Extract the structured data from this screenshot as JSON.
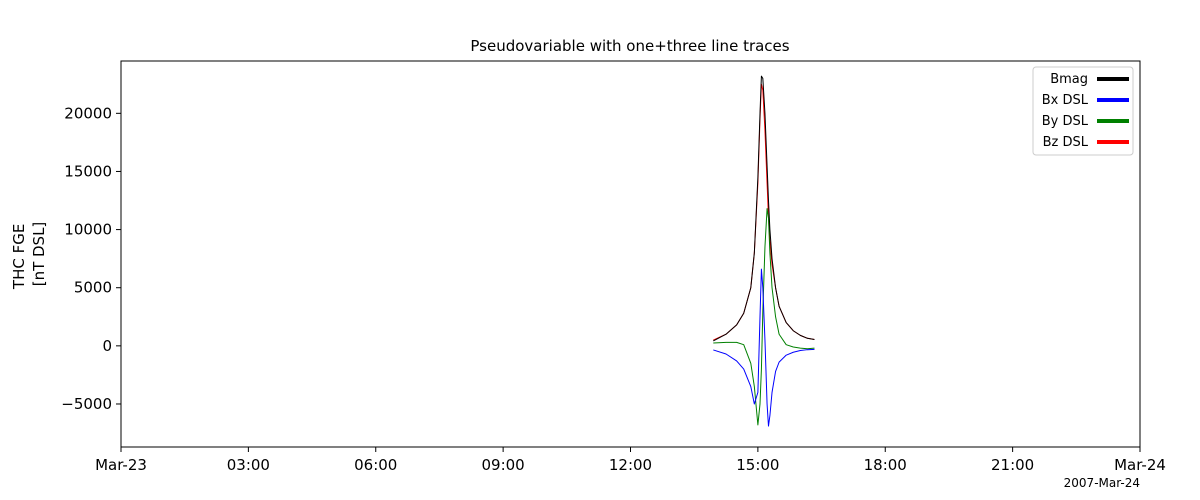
{
  "chart_data": {
    "type": "line",
    "title": "Pseudovariable with one+three line traces",
    "ylabel_lines": [
      "THC FGE",
      "[nT DSL]"
    ],
    "xlabel": "",
    "date_label": "2007-Mar-24",
    "xlim": [
      "2007-03-23 00:00",
      "2007-03-24 00:00"
    ],
    "ylim": [
      -8700,
      24500
    ],
    "x_ticks": [
      {
        "value": "2007-03-23 00:00",
        "label": "Mar-23"
      },
      {
        "value": "2007-03-23 03:00",
        "label": "03:00"
      },
      {
        "value": "2007-03-23 06:00",
        "label": "06:00"
      },
      {
        "value": "2007-03-23 09:00",
        "label": "09:00"
      },
      {
        "value": "2007-03-23 12:00",
        "label": "12:00"
      },
      {
        "value": "2007-03-23 15:00",
        "label": "15:00"
      },
      {
        "value": "2007-03-23 18:00",
        "label": "18:00"
      },
      {
        "value": "2007-03-23 21:00",
        "label": "21:00"
      },
      {
        "value": "2007-03-24 00:00",
        "label": "Mar-24"
      }
    ],
    "y_ticks": [
      {
        "value": 20000,
        "label": "20000"
      },
      {
        "value": 15000,
        "label": "15000"
      },
      {
        "value": 10000,
        "label": "10000"
      },
      {
        "value": 5000,
        "label": "5000"
      },
      {
        "value": 0,
        "label": "0"
      },
      {
        "value": -5000,
        "label": "−5000"
      }
    ],
    "grid": false,
    "legend_position": "top-right",
    "x": [
      "13:57",
      "14:15",
      "14:30",
      "14:40",
      "14:50",
      "14:55",
      "15:00",
      "15:03",
      "15:05",
      "15:07",
      "15:10",
      "15:13",
      "15:15",
      "15:17",
      "15:20",
      "15:25",
      "15:30",
      "15:40",
      "15:50",
      "16:00",
      "16:10",
      "16:20"
    ],
    "series": [
      {
        "name": "Bmag",
        "color": "#000000",
        "values": [
          420,
          1000,
          1800,
          2800,
          5000,
          8000,
          14500,
          20000,
          23200,
          23000,
          20000,
          15500,
          12500,
          10000,
          7500,
          5000,
          3400,
          2000,
          1300,
          900,
          650,
          550
        ]
      },
      {
        "name": "Bx DSL",
        "color": "#0000ff",
        "values": [
          -350,
          -700,
          -1300,
          -2000,
          -3500,
          -5000,
          -4000,
          2500,
          6600,
          5000,
          500,
          -5000,
          -6900,
          -6000,
          -4000,
          -2200,
          -1400,
          -800,
          -550,
          -400,
          -330,
          -300
        ]
      },
      {
        "name": "By DSL",
        "color": "#008000",
        "values": [
          250,
          300,
          300,
          100,
          -1500,
          -3500,
          -6800,
          -5000,
          -2000,
          3000,
          8500,
          11800,
          11000,
          8000,
          5000,
          2500,
          1000,
          100,
          -100,
          -200,
          -250,
          -200
        ]
      },
      {
        "name": "Bz DSL",
        "color": "#ff0000",
        "values": [
          500,
          1000,
          1800,
          2800,
          5000,
          8000,
          14000,
          19500,
          22500,
          22000,
          18500,
          14000,
          11000,
          9000,
          7000,
          5000,
          3400,
          2000,
          1300,
          900,
          650,
          550
        ]
      }
    ]
  }
}
